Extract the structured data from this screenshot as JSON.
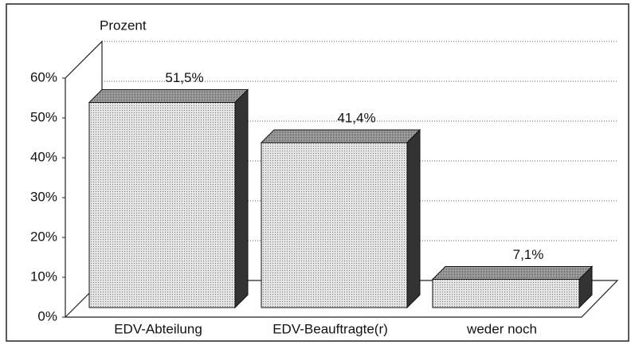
{
  "chart_data": {
    "type": "bar3d",
    "ylabel": "Prozent",
    "categories": [
      "EDV-Abteilung",
      "EDV-Beauftragte(r)",
      "weder noch"
    ],
    "values": [
      51.5,
      41.4,
      7.1
    ],
    "value_labels": [
      "51,5%",
      "41,4%",
      "7,1%"
    ],
    "ylim": [
      0,
      60
    ],
    "yticks": [
      {
        "value": 0,
        "label": "0%"
      },
      {
        "value": 10,
        "label": "10%"
      },
      {
        "value": 20,
        "label": "20%"
      },
      {
        "value": 30,
        "label": "30%"
      },
      {
        "value": 40,
        "label": "40%"
      },
      {
        "value": 50,
        "label": "50%"
      },
      {
        "value": 60,
        "label": "60%"
      }
    ],
    "grid": true
  }
}
